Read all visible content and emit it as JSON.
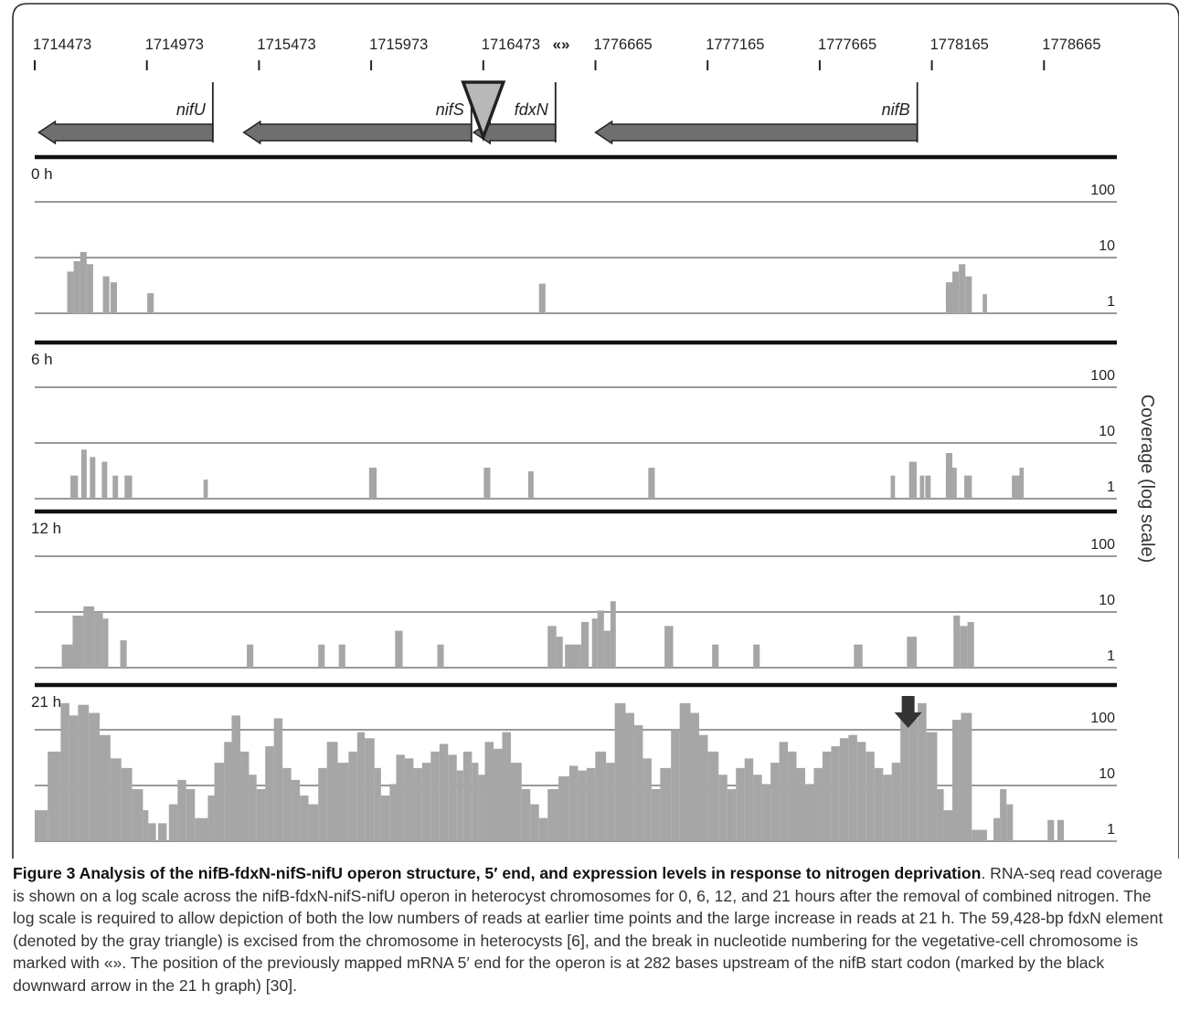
{
  "figure": {
    "ylabel": "Coverage (log scale)",
    "break_marker": "«»",
    "arrow_label": "black downward arrow"
  },
  "chart_data": {
    "type": "area",
    "scale": "log",
    "ticks": [
      {
        "label": "1714473"
      },
      {
        "label": "1714973"
      },
      {
        "label": "1715473"
      },
      {
        "label": "1715973"
      },
      {
        "label": "1716473"
      },
      {
        "label": "1776665"
      },
      {
        "label": "1777165"
      },
      {
        "label": "1777665"
      },
      {
        "label": "1778165"
      },
      {
        "label": "1778665"
      }
    ],
    "genes": [
      {
        "name": "nifU",
        "from": 1714491,
        "to": 1715267,
        "strand": "-"
      },
      {
        "name": "nifS",
        "from": 1715405,
        "to": 1716420,
        "strand": "-"
      },
      {
        "name": "fdxN",
        "from": 1716430,
        "to": 1716795,
        "strand": "-"
      },
      {
        "name": "nifB",
        "from": 1776665,
        "to": 1778100,
        "strand": "-"
      }
    ],
    "element": {
      "label": "59,428-bp fdxN element",
      "position": 1716473
    },
    "y_ticks": [
      {
        "label": "100",
        "value": 100
      },
      {
        "label": "10",
        "value": 10
      },
      {
        "label": "1",
        "value": 1
      }
    ],
    "panels": [
      {
        "name": "0 h",
        "bars": [
          [
            0.03,
            0.036,
            5
          ],
          [
            0.036,
            0.042,
            8
          ],
          [
            0.042,
            0.048,
            12
          ],
          [
            0.048,
            0.054,
            7
          ],
          [
            0.063,
            0.069,
            4
          ],
          [
            0.07,
            0.076,
            3
          ],
          [
            0.104,
            0.11,
            1.7
          ],
          [
            0.466,
            0.472,
            2.8
          ],
          [
            0.842,
            0.848,
            3
          ],
          [
            0.848,
            0.854,
            5
          ],
          [
            0.854,
            0.86,
            7
          ],
          [
            0.86,
            0.866,
            4
          ],
          [
            0.876,
            0.88,
            1.6
          ]
        ]
      },
      {
        "name": "6 h",
        "bars": [
          [
            0.033,
            0.04,
            2
          ],
          [
            0.043,
            0.048,
            7
          ],
          [
            0.051,
            0.056,
            5
          ],
          [
            0.062,
            0.067,
            4
          ],
          [
            0.072,
            0.077,
            2
          ],
          [
            0.083,
            0.09,
            2
          ],
          [
            0.156,
            0.16,
            1.6
          ],
          [
            0.309,
            0.316,
            3
          ],
          [
            0.415,
            0.421,
            3
          ],
          [
            0.456,
            0.461,
            2.5
          ],
          [
            0.567,
            0.573,
            3
          ],
          [
            0.791,
            0.795,
            2
          ],
          [
            0.808,
            0.815,
            4
          ],
          [
            0.818,
            0.822,
            2
          ],
          [
            0.823,
            0.828,
            2
          ],
          [
            0.842,
            0.848,
            6
          ],
          [
            0.848,
            0.852,
            3
          ],
          [
            0.859,
            0.866,
            2
          ],
          [
            0.903,
            0.91,
            2
          ],
          [
            0.91,
            0.914,
            3
          ]
        ]
      },
      {
        "name": "12 h",
        "bars": [
          [
            0.025,
            0.035,
            2
          ],
          [
            0.035,
            0.045,
            8
          ],
          [
            0.045,
            0.055,
            12
          ],
          [
            0.055,
            0.063,
            9
          ],
          [
            0.063,
            0.068,
            7
          ],
          [
            0.079,
            0.085,
            2.5
          ],
          [
            0.196,
            0.202,
            2
          ],
          [
            0.262,
            0.268,
            2
          ],
          [
            0.281,
            0.287,
            2
          ],
          [
            0.333,
            0.34,
            4
          ],
          [
            0.372,
            0.378,
            2
          ],
          [
            0.474,
            0.482,
            5
          ],
          [
            0.482,
            0.488,
            3
          ],
          [
            0.49,
            0.505,
            2
          ],
          [
            0.505,
            0.512,
            6
          ],
          [
            0.515,
            0.52,
            7
          ],
          [
            0.52,
            0.526,
            10
          ],
          [
            0.526,
            0.532,
            4
          ],
          [
            0.532,
            0.537,
            15
          ],
          [
            0.582,
            0.59,
            5
          ],
          [
            0.626,
            0.632,
            2
          ],
          [
            0.664,
            0.67,
            2
          ],
          [
            0.757,
            0.765,
            2
          ],
          [
            0.806,
            0.815,
            3
          ],
          [
            0.849,
            0.855,
            8
          ],
          [
            0.855,
            0.862,
            5
          ],
          [
            0.862,
            0.868,
            6
          ]
        ]
      },
      {
        "name": "21 h",
        "bars": [
          [
            0.0,
            0.012,
            3
          ],
          [
            0.012,
            0.024,
            40
          ],
          [
            0.024,
            0.032,
            300
          ],
          [
            0.032,
            0.04,
            180
          ],
          [
            0.04,
            0.05,
            280
          ],
          [
            0.05,
            0.06,
            200
          ],
          [
            0.06,
            0.07,
            80
          ],
          [
            0.07,
            0.08,
            30
          ],
          [
            0.08,
            0.09,
            20
          ],
          [
            0.09,
            0.1,
            8
          ],
          [
            0.1,
            0.105,
            3
          ],
          [
            0.105,
            0.112,
            1.5
          ],
          [
            0.114,
            0.122,
            1.5
          ],
          [
            0.124,
            0.132,
            4
          ],
          [
            0.132,
            0.14,
            12
          ],
          [
            0.14,
            0.148,
            8
          ],
          [
            0.148,
            0.16,
            2
          ],
          [
            0.16,
            0.166,
            6
          ],
          [
            0.166,
            0.175,
            25
          ],
          [
            0.175,
            0.182,
            60
          ],
          [
            0.182,
            0.19,
            180
          ],
          [
            0.19,
            0.198,
            40
          ],
          [
            0.198,
            0.205,
            15
          ],
          [
            0.205,
            0.213,
            8
          ],
          [
            0.213,
            0.221,
            50
          ],
          [
            0.221,
            0.229,
            160
          ],
          [
            0.229,
            0.237,
            20
          ],
          [
            0.237,
            0.245,
            12
          ],
          [
            0.245,
            0.253,
            6
          ],
          [
            0.253,
            0.262,
            4
          ],
          [
            0.262,
            0.27,
            20
          ],
          [
            0.27,
            0.28,
            60
          ],
          [
            0.28,
            0.29,
            25
          ],
          [
            0.29,
            0.298,
            40
          ],
          [
            0.298,
            0.305,
            90
          ],
          [
            0.305,
            0.314,
            70
          ],
          [
            0.314,
            0.32,
            20
          ],
          [
            0.32,
            0.328,
            6
          ],
          [
            0.328,
            0.334,
            10
          ],
          [
            0.334,
            0.342,
            35
          ],
          [
            0.342,
            0.35,
            30
          ],
          [
            0.35,
            0.358,
            20
          ],
          [
            0.358,
            0.366,
            25
          ],
          [
            0.366,
            0.374,
            40
          ],
          [
            0.374,
            0.382,
            55
          ],
          [
            0.382,
            0.39,
            35
          ],
          [
            0.39,
            0.396,
            18
          ],
          [
            0.396,
            0.404,
            40
          ],
          [
            0.404,
            0.41,
            25
          ],
          [
            0.41,
            0.416,
            15
          ],
          [
            0.416,
            0.424,
            60
          ],
          [
            0.424,
            0.432,
            45
          ],
          [
            0.432,
            0.44,
            90
          ],
          [
            0.44,
            0.45,
            25
          ],
          [
            0.45,
            0.458,
            8
          ],
          [
            0.458,
            0.466,
            4
          ],
          [
            0.466,
            0.474,
            2
          ],
          [
            0.474,
            0.484,
            8
          ],
          [
            0.484,
            0.494,
            14
          ],
          [
            0.494,
            0.502,
            22
          ],
          [
            0.502,
            0.51,
            18
          ],
          [
            0.51,
            0.518,
            20
          ],
          [
            0.518,
            0.528,
            40
          ],
          [
            0.528,
            0.536,
            25
          ],
          [
            0.536,
            0.546,
            300
          ],
          [
            0.546,
            0.554,
            200
          ],
          [
            0.554,
            0.562,
            120
          ],
          [
            0.562,
            0.57,
            30
          ],
          [
            0.57,
            0.578,
            8
          ],
          [
            0.578,
            0.588,
            20
          ],
          [
            0.588,
            0.596,
            100
          ],
          [
            0.596,
            0.606,
            300
          ],
          [
            0.606,
            0.614,
            200
          ],
          [
            0.614,
            0.622,
            80
          ],
          [
            0.622,
            0.632,
            40
          ],
          [
            0.632,
            0.64,
            15
          ],
          [
            0.64,
            0.648,
            8
          ],
          [
            0.648,
            0.656,
            20
          ],
          [
            0.656,
            0.664,
            30
          ],
          [
            0.664,
            0.672,
            15
          ],
          [
            0.672,
            0.68,
            10
          ],
          [
            0.68,
            0.688,
            25
          ],
          [
            0.688,
            0.696,
            60
          ],
          [
            0.696,
            0.704,
            40
          ],
          [
            0.704,
            0.712,
            20
          ],
          [
            0.712,
            0.72,
            10
          ],
          [
            0.72,
            0.728,
            20
          ],
          [
            0.728,
            0.736,
            40
          ],
          [
            0.736,
            0.744,
            50
          ],
          [
            0.744,
            0.752,
            70
          ],
          [
            0.752,
            0.76,
            80
          ],
          [
            0.76,
            0.768,
            60
          ],
          [
            0.768,
            0.776,
            40
          ],
          [
            0.776,
            0.784,
            20
          ],
          [
            0.784,
            0.792,
            15
          ],
          [
            0.792,
            0.8,
            25
          ],
          [
            0.8,
            0.808,
            200
          ],
          [
            0.808,
            0.816,
            160
          ],
          [
            0.816,
            0.824,
            300
          ],
          [
            0.824,
            0.834,
            90
          ],
          [
            0.834,
            0.84,
            8
          ],
          [
            0.84,
            0.848,
            3
          ],
          [
            0.848,
            0.856,
            150
          ],
          [
            0.856,
            0.866,
            200
          ],
          [
            0.866,
            0.88,
            1
          ],
          [
            0.886,
            0.892,
            2
          ],
          [
            0.892,
            0.898,
            8
          ],
          [
            0.898,
            0.904,
            4
          ],
          [
            0.936,
            0.942,
            1.8
          ],
          [
            0.945,
            0.951,
            1.8
          ]
        ]
      }
    ],
    "arrow": {
      "panel": "21 h",
      "position": 1778100
    }
  },
  "caption": {
    "lead": "Figure 3 Analysis of the nifB-fdxN-nifS-nifU operon structure, 5′ end, and expression levels in response to nitrogen deprivation",
    "body": ". RNA-seq read coverage is shown on a log scale across the nifB-fdxN-nifS-nifU operon in heterocyst chromosomes for 0, 6, 12, and 21 hours after the removal of combined nitrogen. The log scale is required to allow depiction of both the low numbers of reads at earlier time points and the large increase in reads at 21 h. The 59,428-bp fdxN element (denoted by the gray triangle) is excised from the chromosome in heterocysts [6], and the break in nucleotide numbering for the vegetative-cell chromosome is marked with «». The position of the previously mapped mRNA 5′ end for the operon is at 282 bases upstream of the nifB start codon (marked by the black downward arrow in the 21 h graph) [30]."
  },
  "colors": {
    "frame": "#2a2a2a",
    "gene": "#6f6f6f",
    "coverage": "#a6a6a6",
    "gridline": "#999999",
    "triangle_fill": "#b8b8b8",
    "arrow": "#333333"
  }
}
